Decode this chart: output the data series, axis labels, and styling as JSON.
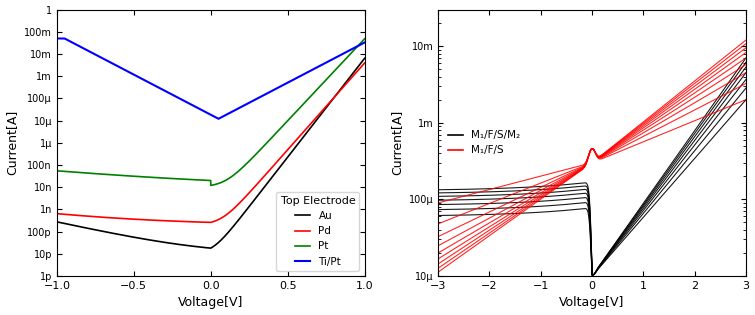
{
  "left": {
    "xlabel": "Voltage[V]",
    "ylabel": "Current[A]",
    "xlim": [
      -1.0,
      1.0
    ],
    "ylim_log": [
      1e-12,
      1
    ],
    "yticks": [
      1e-12,
      1e-11,
      1e-10,
      1e-09,
      1e-08,
      1e-07,
      1e-06,
      1e-05,
      0.0001,
      0.001,
      0.01,
      0.1,
      1
    ],
    "ytick_labels": [
      "1p",
      "10p",
      "100p",
      "1n",
      "10n",
      "100n",
      "1μ",
      "10μ",
      "100μ",
      "1m",
      "10m",
      "100m",
      "1"
    ],
    "legend_title": "Top Electrode",
    "legend_labels": [
      "Au",
      "Pd",
      "Pt",
      "Ti/Pt"
    ],
    "legend_colors": [
      "black",
      "red",
      "green",
      "blue"
    ],
    "xticks": [
      -1.0,
      -0.5,
      0.0,
      0.5,
      1.0
    ]
  },
  "right": {
    "xlabel": "Voltage[V]",
    "ylabel": "Current[A]",
    "xlim": [
      -3.0,
      3.0
    ],
    "ylim_log": [
      1e-05,
      0.03
    ],
    "yticks": [
      1e-05,
      0.0001,
      0.001,
      0.01
    ],
    "ytick_labels": [
      "10μ",
      "100μ",
      "1m",
      "10m"
    ],
    "legend_labels": [
      "M₁/F/S/M₂",
      "M₁/F/S"
    ],
    "legend_colors": [
      "black",
      "red"
    ],
    "xticks": [
      -3,
      -2,
      -1,
      0,
      1,
      2,
      3
    ]
  }
}
